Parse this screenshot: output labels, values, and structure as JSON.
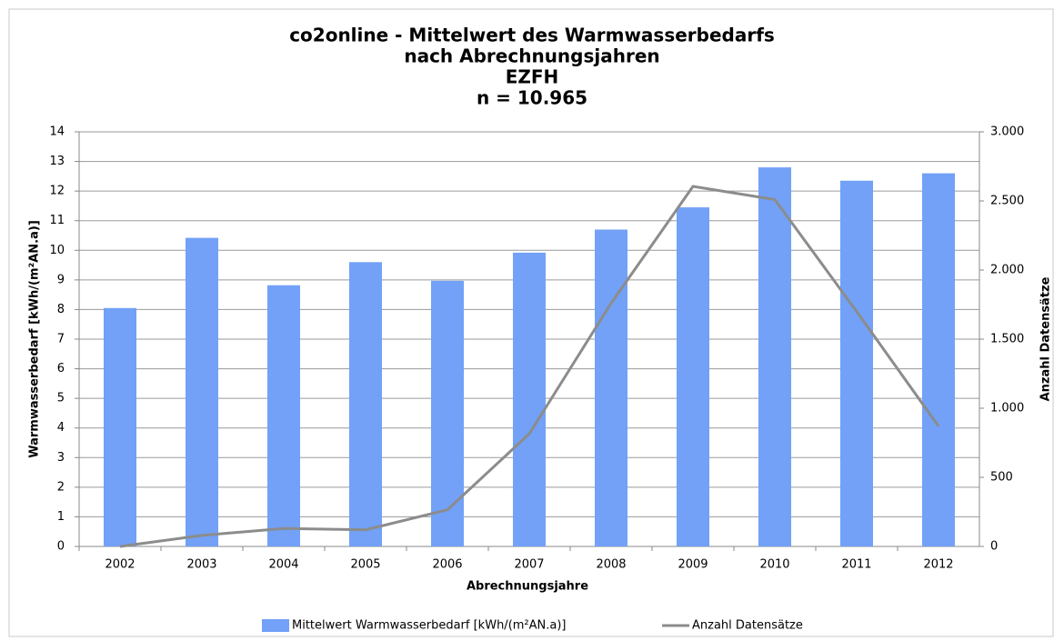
{
  "chart_data": {
    "type": "bar",
    "title": [
      "co2online - Mittelwert des Warmwasserbedarfs",
      "nach Abrechnungsjahren",
      "EZFH",
      "n = 10.965"
    ],
    "x_label": "Abrechnungsjahre",
    "y_label": "Warmwasserbedarf  [kWh/(m²AN.a)]",
    "y2_label": "Anzahl Datensätze",
    "categories": [
      "2002",
      "2003",
      "2004",
      "2005",
      "2006",
      "2007",
      "2008",
      "2009",
      "2010",
      "2011",
      "2012"
    ],
    "series": [
      {
        "name": "Mittelwert Warmwasserbedarf [kWh/(m²AN.a)]",
        "type": "bar",
        "color": "#72a1f7",
        "values": [
          8.05,
          10.42,
          8.82,
          9.6,
          8.97,
          9.92,
          10.7,
          11.45,
          12.8,
          12.35,
          12.6
        ]
      },
      {
        "name": "Anzahl Datensätze",
        "type": "line",
        "axis": "y2",
        "color": "#8c8c8c",
        "values": [
          0,
          80,
          130,
          120,
          265,
          815,
          1760,
          2605,
          2510,
          1700,
          870
        ]
      }
    ],
    "ylim": [
      0,
      14
    ],
    "yticks": [
      0,
      1,
      2,
      3,
      4,
      5,
      6,
      7,
      8,
      9,
      10,
      11,
      12,
      13,
      14
    ],
    "y2lim": [
      0,
      3000
    ],
    "y2ticks": [
      0,
      500,
      {
        "value": 1000,
        "label": "1.000"
      },
      {
        "value": 1500,
        "label": "1.500"
      },
      {
        "value": 2000,
        "label": "2.000"
      },
      {
        "value": 2500,
        "label": "2.500"
      },
      {
        "value": 3000,
        "label": "3.000"
      }
    ],
    "grid": true,
    "legend": "bottom"
  }
}
